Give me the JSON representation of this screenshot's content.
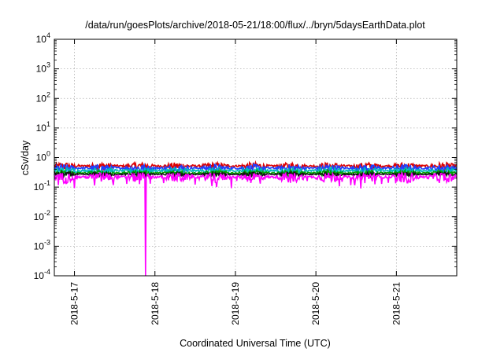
{
  "chart_data": {
    "type": "line",
    "title": "/data/run/goesPlots/archive/2018-05-21/18:00/flux/../bryn/5daysEarthData.plot",
    "xlabel": "Coordinated Universal Time (UTC)",
    "ylabel": "cSv/day",
    "yscale": "log",
    "ylim": [
      0.0001,
      10000
    ],
    "y_ticks": [
      {
        "value": 0.0001,
        "base": "10",
        "exp": "-4"
      },
      {
        "value": 0.001,
        "base": "10",
        "exp": "-3"
      },
      {
        "value": 0.01,
        "base": "10",
        "exp": "-2"
      },
      {
        "value": 0.1,
        "base": "10",
        "exp": "-1"
      },
      {
        "value": 1,
        "base": "10",
        "exp": "0"
      },
      {
        "value": 10,
        "base": "10",
        "exp": "1"
      },
      {
        "value": 100,
        "base": "10",
        "exp": "2"
      },
      {
        "value": 1000,
        "base": "10",
        "exp": "3"
      },
      {
        "value": 10000,
        "base": "10",
        "exp": "4"
      }
    ],
    "xlim": [
      "2018-05-16 18:00",
      "2018-05-21 18:00"
    ],
    "x_ticks": [
      {
        "value": "2018-05-17 00:00",
        "label": "2018-5-17"
      },
      {
        "value": "2018-05-18 00:00",
        "label": "2018-5-18"
      },
      {
        "value": "2018-05-19 00:00",
        "label": "2018-5-19"
      },
      {
        "value": "2018-05-20 00:00",
        "label": "2018-5-20"
      },
      {
        "value": "2018-05-21 00:00",
        "label": "2018-5-21"
      }
    ],
    "grid": true,
    "legend": "none",
    "series": [
      {
        "color": "#dd0000",
        "base": 0.52,
        "spread": 0.17,
        "dip_rate": 0.0,
        "dip_factor": 1.0
      },
      {
        "color": "#1f3fff",
        "base": 0.44,
        "spread": 0.15,
        "dip_rate": 0.0,
        "dip_factor": 1.0
      },
      {
        "color": "#00bbbb",
        "base": 0.36,
        "spread": 0.11,
        "dip_rate": 0.0,
        "dip_factor": 1.0
      },
      {
        "color": "#00a000",
        "base": 0.3,
        "spread": 0.08,
        "dip_rate": 0.0,
        "dip_factor": 1.0
      },
      {
        "color": "#111111",
        "base": 0.27,
        "spread": 0.05,
        "dip_rate": 0.0,
        "dip_factor": 1.0
      },
      {
        "color": "#ff00ff",
        "base": 0.22,
        "spread": 0.09,
        "dip_rate": 0.06,
        "dip_factor": 0.45,
        "dropout": {
          "time": "2018-05-17 21:10",
          "value": 0.0001
        }
      }
    ]
  }
}
